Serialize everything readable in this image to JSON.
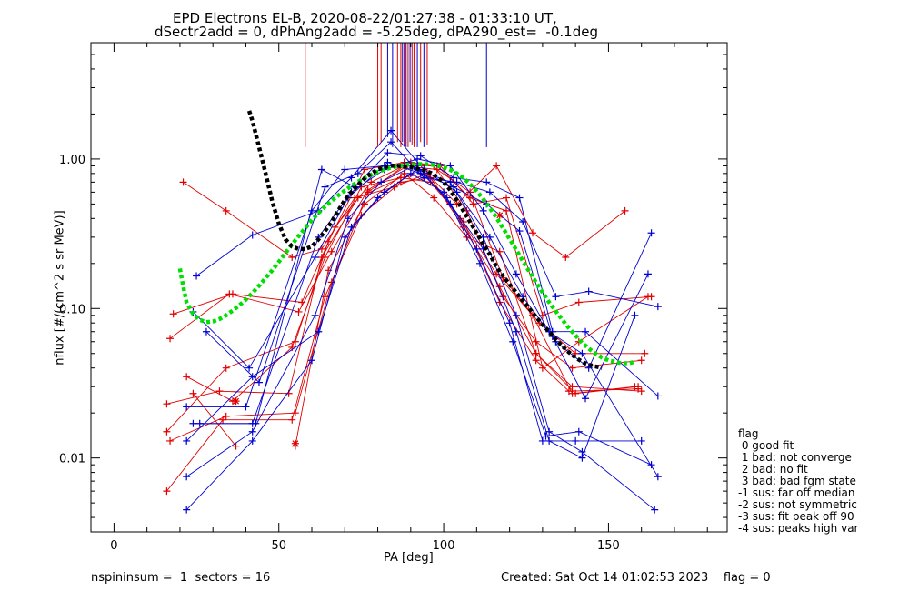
{
  "title_line1": "EPD Electrons EL-B, 2020-08-22/01:27:38 - 01:33:10 UT,",
  "title_line2": "dSectr2add = 0, dPhAng2add = -5.25deg, dPA290_est=  -0.1deg",
  "footer_left": "nspininsum =  1  sectors = 16",
  "footer_right": "Created: Sat Oct 14 01:02:53 2023    flag = 0",
  "legend": {
    "title": "flag",
    "items": [
      " 0 good fit",
      " 1 bad: not converge",
      " 2 bad: no fit",
      " 3 bad: bad fgm state",
      "-1 sus: far off median",
      "-2 sus: not symmetric",
      "-3 sus: fit peak off 90",
      "-4 sus: peaks high var"
    ]
  },
  "colors": {
    "red": "#e00000",
    "blue": "#0000d0",
    "green": "#00e000",
    "black": "#000000"
  },
  "chart_data": {
    "type": "line",
    "xlabel": "PA [deg]",
    "ylabel": "nflux [#/(cm^2 s sr MeV)]",
    "xlim": [
      -7,
      186
    ],
    "ylim": [
      0.0032,
      6
    ],
    "yscale": "log",
    "xticks": [
      0,
      50,
      100,
      150
    ],
    "yticks": [
      0.01,
      0.1,
      1.0
    ],
    "ytick_labels": [
      "0.01",
      "0.10",
      "1.00"
    ],
    "series": [
      {
        "color": "red",
        "x": [
          16,
          32,
          53,
          63,
          74,
          87,
          96,
          106,
          117,
          128,
          138,
          159
        ],
        "y": [
          0.023,
          0.028,
          0.027,
          0.22,
          0.55,
          0.75,
          0.7,
          0.38,
          0.11,
          0.045,
          0.028,
          0.029
        ]
      },
      {
        "color": "red",
        "x": [
          16,
          33,
          54,
          64,
          75,
          87,
          96,
          106,
          117,
          128,
          139,
          160
        ],
        "y": [
          0.006,
          0.018,
          0.018,
          0.12,
          0.42,
          0.7,
          0.75,
          0.35,
          0.14,
          0.05,
          0.03,
          0.028
        ]
      },
      {
        "color": "red",
        "x": [
          16,
          34,
          55,
          65,
          76,
          88,
          97,
          107,
          118,
          128,
          139,
          160
        ],
        "y": [
          0.015,
          0.04,
          0.06,
          0.28,
          0.85,
          0.95,
          0.9,
          0.45,
          0.12,
          0.06,
          0.04,
          0.045
        ]
      },
      {
        "color": "red",
        "x": [
          17,
          34,
          55,
          66,
          77,
          88,
          98,
          108,
          118,
          129,
          140,
          161
        ],
        "y": [
          0.013,
          0.019,
          0.02,
          0.15,
          0.6,
          0.9,
          0.85,
          0.6,
          0.16,
          0.08,
          0.05,
          0.05
        ]
      },
      {
        "color": "red",
        "x": [
          17,
          35,
          56,
          66,
          77,
          89,
          98,
          108,
          119,
          130,
          141,
          162
        ],
        "y": [
          0.063,
          0.125,
          0.095,
          0.24,
          0.62,
          0.9,
          0.9,
          0.55,
          0.45,
          0.04,
          0.06,
          0.12
        ]
      },
      {
        "color": "red",
        "x": [
          18,
          36,
          57,
          67,
          78,
          90,
          99,
          109,
          119,
          130,
          141,
          163
        ],
        "y": [
          0.092,
          0.125,
          0.11,
          0.35,
          0.7,
          0.95,
          0.9,
          0.5,
          0.55,
          0.09,
          0.11,
          0.12
        ]
      },
      {
        "color": "red",
        "x": [
          21,
          34,
          54,
          63,
          73,
          85,
          95,
          104,
          116,
          127,
          137,
          155
        ],
        "y": [
          0.7,
          0.45,
          0.22,
          0.25,
          0.55,
          0.65,
          0.8,
          0.5,
          0.9,
          0.32,
          0.22,
          0.45
        ]
      },
      {
        "color": "red",
        "x": [
          22,
          36,
          54,
          64,
          75,
          87,
          95,
          105,
          116,
          127,
          139,
          158
        ],
        "y": [
          0.035,
          0.024,
          0.055,
          0.22,
          0.65,
          0.75,
          0.8,
          0.4,
          0.17,
          0.09,
          0.027,
          0.03
        ]
      },
      {
        "color": "red",
        "x": [
          24,
          37,
          55,
          65,
          76,
          88,
          97,
          107,
          117,
          128,
          140,
          159
        ],
        "y": [
          0.027,
          0.012,
          0.012,
          0.18,
          0.5,
          0.8,
          0.55,
          0.3,
          0.24,
          0.05,
          0.027,
          0.03
        ]
      },
      {
        "color": "blue",
        "x": [
          22,
          42,
          60,
          70,
          80,
          90,
          100,
          110,
          120,
          130,
          140,
          160
        ],
        "y": [
          0.0045,
          0.013,
          0.045,
          0.3,
          0.55,
          0.8,
          0.6,
          0.25,
          0.08,
          0.013,
          0.013,
          0.013
        ]
      },
      {
        "color": "blue",
        "x": [
          22,
          42,
          61,
          71,
          81,
          91,
          101,
          111,
          121,
          131,
          141,
          163
        ],
        "y": [
          0.0075,
          0.015,
          0.09,
          0.4,
          0.7,
          0.9,
          0.55,
          0.2,
          0.06,
          0.014,
          0.015,
          0.009
        ]
      },
      {
        "color": "blue",
        "x": [
          22,
          42,
          62,
          72,
          82,
          92,
          102,
          112,
          122,
          132,
          142,
          164
        ],
        "y": [
          0.013,
          0.035,
          0.07,
          0.35,
          0.6,
          0.85,
          0.7,
          0.3,
          0.09,
          0.015,
          0.011,
          0.0045
        ]
      },
      {
        "color": "blue",
        "x": [
          24,
          42,
          62,
          72,
          82,
          92,
          102,
          112,
          122,
          132,
          142,
          165
        ],
        "y": [
          0.017,
          0.017,
          0.3,
          0.6,
          0.85,
          1.0,
          0.9,
          0.45,
          0.17,
          0.07,
          0.05,
          0.0075
        ]
      },
      {
        "color": "blue",
        "x": [
          26,
          43,
          63,
          73,
          83,
          93,
          103,
          113,
          123,
          133,
          143,
          165
        ],
        "y": [
          0.017,
          0.017,
          0.85,
          0.65,
          1.1,
          1.05,
          0.75,
          0.7,
          0.55,
          0.07,
          0.07,
          0.026
        ]
      },
      {
        "color": "blue",
        "x": [
          28,
          44,
          64,
          74,
          84,
          94,
          104,
          114,
          124,
          134,
          144,
          165
        ],
        "y": [
          0.07,
          0.032,
          0.65,
          0.8,
          1.3,
          0.75,
          0.7,
          0.6,
          0.38,
          0.12,
          0.13,
          0.103
        ]
      },
      {
        "color": "blue",
        "x": [
          25,
          42,
          62,
          72,
          84,
          94,
          104,
          114,
          124,
          134,
          144,
          163
        ],
        "y": [
          0.165,
          0.31,
          0.45,
          0.75,
          1.55,
          0.85,
          0.6,
          0.3,
          0.12,
          0.06,
          0.04,
          0.32
        ]
      },
      {
        "color": "blue",
        "x": [
          24,
          41,
          61,
          71,
          83,
          93,
          103,
          113,
          123,
          133,
          143,
          162
        ],
        "y": [
          0.095,
          0.04,
          0.22,
          0.55,
          0.95,
          0.8,
          0.65,
          0.5,
          0.33,
          0.065,
          0.025,
          0.17
        ]
      },
      {
        "color": "blue",
        "x": [
          22,
          40,
          60,
          70,
          82,
          92,
          102,
          112,
          122,
          132,
          142,
          158
        ],
        "y": [
          0.022,
          0.022,
          0.45,
          0.85,
          0.9,
          0.9,
          0.5,
          0.25,
          0.07,
          0.013,
          0.01,
          0.09
        ]
      }
    ],
    "black_fit": {
      "x": [
        41,
        42,
        44,
        46,
        48,
        50,
        52,
        54,
        56,
        58,
        60,
        62,
        64,
        66,
        68,
        70,
        72,
        74,
        76,
        78,
        80,
        82,
        84,
        86,
        88,
        90,
        92,
        94,
        96,
        98,
        100,
        102,
        104,
        106,
        108,
        110,
        112,
        114,
        116,
        118,
        120,
        122,
        124,
        126,
        128,
        130,
        132,
        134,
        136,
        138,
        140,
        142,
        144,
        146,
        148
      ],
      "y": [
        2.1,
        1.8,
        1.2,
        0.8,
        0.52,
        0.37,
        0.29,
        0.26,
        0.25,
        0.25,
        0.26,
        0.29,
        0.33,
        0.38,
        0.45,
        0.53,
        0.6,
        0.67,
        0.74,
        0.8,
        0.85,
        0.88,
        0.9,
        0.9,
        0.89,
        0.88,
        0.86,
        0.84,
        0.81,
        0.76,
        0.7,
        0.62,
        0.53,
        0.45,
        0.38,
        0.32,
        0.27,
        0.23,
        0.19,
        0.165,
        0.145,
        0.128,
        0.113,
        0.1,
        0.088,
        0.078,
        0.07,
        0.062,
        0.056,
        0.051,
        0.047,
        0.044,
        0.042,
        0.041,
        0.04
      ]
    },
    "green_fit": {
      "x": [
        20,
        21,
        22,
        24,
        26,
        28,
        30,
        32,
        34,
        36,
        38,
        40,
        42,
        44,
        46,
        48,
        50,
        52,
        54,
        56,
        58,
        60,
        62,
        64,
        66,
        68,
        70,
        72,
        74,
        76,
        78,
        80,
        82,
        84,
        86,
        88,
        90,
        92,
        94,
        96,
        98,
        100,
        102,
        104,
        106,
        108,
        110,
        112,
        114,
        116,
        118,
        120,
        122,
        124,
        126,
        128,
        130,
        132,
        134,
        136,
        138,
        140,
        142,
        144,
        146,
        148,
        150,
        152,
        154,
        156,
        158
      ],
      "y": [
        0.185,
        0.14,
        0.11,
        0.092,
        0.084,
        0.081,
        0.082,
        0.085,
        0.09,
        0.097,
        0.105,
        0.115,
        0.127,
        0.142,
        0.16,
        0.18,
        0.205,
        0.235,
        0.268,
        0.305,
        0.345,
        0.39,
        0.435,
        0.48,
        0.525,
        0.57,
        0.615,
        0.66,
        0.705,
        0.745,
        0.785,
        0.82,
        0.85,
        0.875,
        0.895,
        0.91,
        0.92,
        0.925,
        0.925,
        0.92,
        0.905,
        0.88,
        0.845,
        0.8,
        0.745,
        0.68,
        0.61,
        0.54,
        0.47,
        0.405,
        0.345,
        0.292,
        0.247,
        0.208,
        0.176,
        0.15,
        0.128,
        0.11,
        0.096,
        0.084,
        0.074,
        0.066,
        0.059,
        0.054,
        0.05,
        0.047,
        0.045,
        0.044,
        0.043,
        0.043,
        0.044
      ]
    },
    "vlines": [
      {
        "color": "red",
        "x": 58,
        "ytop": 6,
        "ybottom": 1.2
      },
      {
        "color": "red",
        "x": 80,
        "ytop": 6,
        "ybottom": 1.2
      },
      {
        "color": "red",
        "x": 81,
        "ytop": 6,
        "ybottom": 1.3
      },
      {
        "color": "blue",
        "x": 83,
        "ytop": 6,
        "ybottom": 1.4
      },
      {
        "color": "blue",
        "x": 84.5,
        "ytop": 6,
        "ybottom": 1.2
      },
      {
        "color": "red",
        "x": 86,
        "ytop": 6,
        "ybottom": 1.3
      },
      {
        "color": "red",
        "x": 87,
        "ytop": 6,
        "ybottom": 1.2
      },
      {
        "color": "blue",
        "x": 87.5,
        "ytop": 6,
        "ybottom": 1.3
      },
      {
        "color": "red",
        "x": 88,
        "ytop": 6,
        "ybottom": 1.25
      },
      {
        "color": "blue",
        "x": 88.6,
        "ytop": 6,
        "ybottom": 1.2
      },
      {
        "color": "red",
        "x": 89.2,
        "ytop": 6,
        "ybottom": 1.2
      },
      {
        "color": "blue",
        "x": 89.8,
        "ytop": 6,
        "ybottom": 1.3
      },
      {
        "color": "red",
        "x": 90.4,
        "ytop": 6,
        "ybottom": 1.25
      },
      {
        "color": "red",
        "x": 91,
        "ytop": 6,
        "ybottom": 1.2
      },
      {
        "color": "blue",
        "x": 92,
        "ytop": 6,
        "ybottom": 1.2
      },
      {
        "color": "red",
        "x": 93,
        "ytop": 6,
        "ybottom": 1.3
      },
      {
        "color": "blue",
        "x": 94,
        "ytop": 6,
        "ybottom": 1.2
      },
      {
        "color": "red",
        "x": 95,
        "ytop": 6,
        "ybottom": 1.25
      },
      {
        "color": "blue",
        "x": 113,
        "ytop": 6,
        "ybottom": 1.2
      }
    ],
    "star_markers": [
      {
        "color": "red",
        "x": 37,
        "y": 0.024
      },
      {
        "color": "red",
        "x": 55,
        "y": 0.0125
      },
      {
        "color": "red",
        "x": 117,
        "y": 0.42
      }
    ]
  }
}
